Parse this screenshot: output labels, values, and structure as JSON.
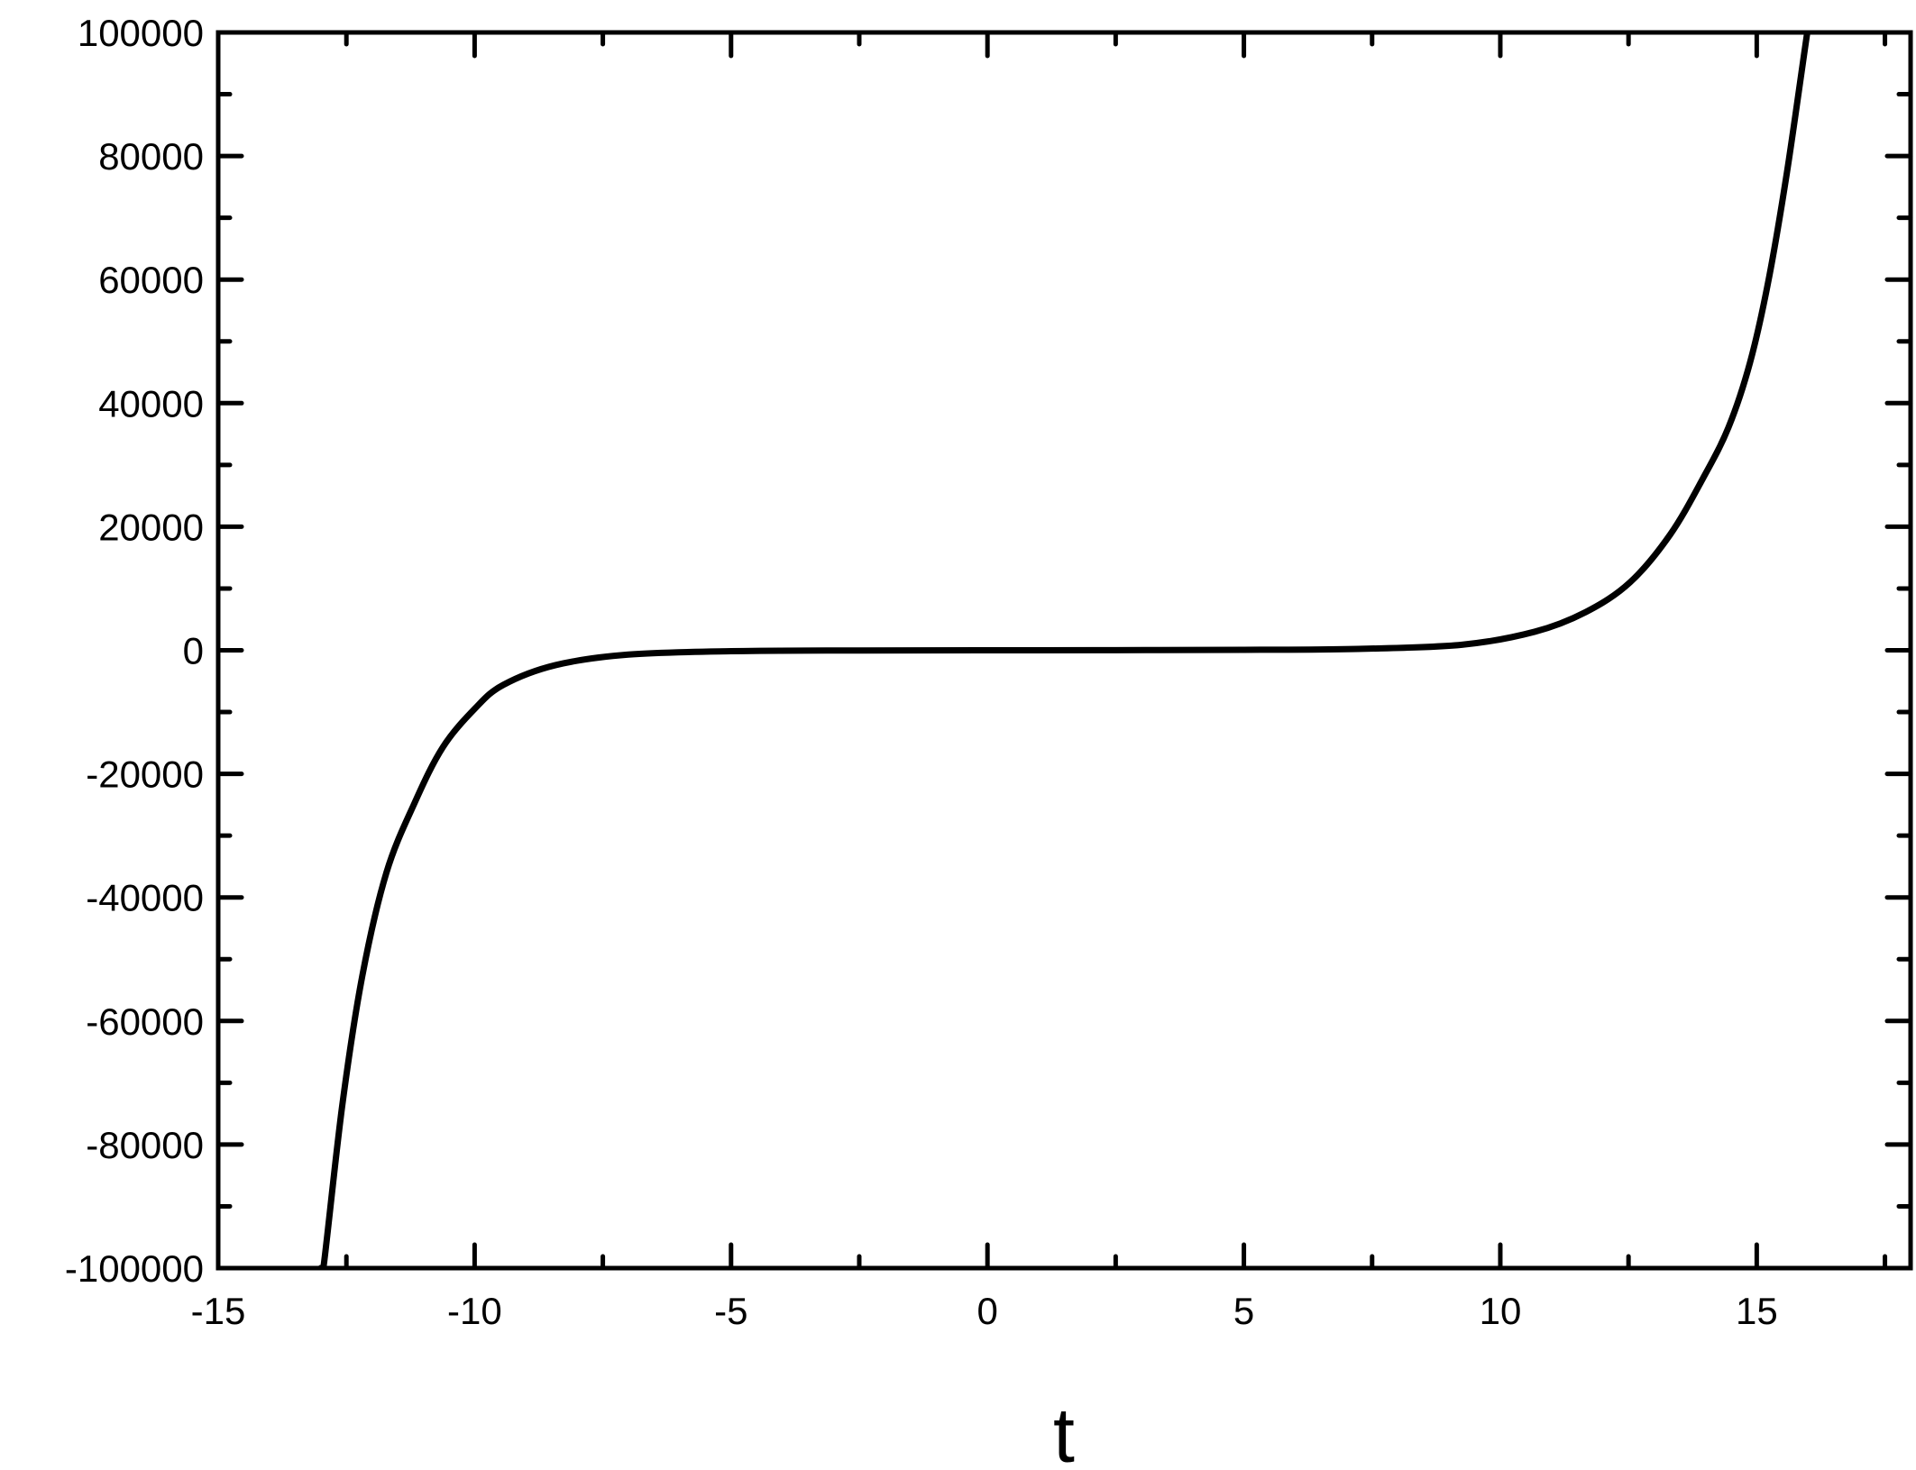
{
  "chart_data": {
    "type": "line",
    "title": "",
    "xlabel": "t",
    "ylabel": "",
    "xlim": [
      -15,
      18
    ],
    "ylim": [
      -100000,
      100000
    ],
    "x_ticks": [
      -15,
      -10,
      -5,
      0,
      5,
      10,
      15
    ],
    "x_tick_labels": [
      "-15",
      "-10",
      "-5",
      "0",
      "5",
      "10",
      "15"
    ],
    "y_ticks": [
      -100000,
      -80000,
      -60000,
      -40000,
      -20000,
      0,
      20000,
      40000,
      60000,
      80000,
      100000
    ],
    "y_tick_labels": [
      "-100000",
      "-80000",
      "-60000",
      "-40000",
      "-20000",
      "0",
      "20000",
      "40000",
      "60000",
      "80000",
      "100000"
    ],
    "grid": false,
    "line_color": "#000000",
    "series": [
      {
        "x": [
          -13.0,
          -12.94,
          -12.58,
          -12.19,
          -11.72,
          -11.17,
          -10.62,
          -9.99,
          -9.44,
          -8.42,
          -7.0,
          -5.0,
          -2.5,
          0,
          2.5,
          5.0,
          7.1,
          9.25,
          10.67,
          11.67,
          12.53,
          13.31,
          13.95,
          14.45,
          14.87,
          15.23,
          15.59,
          15.98,
          16.0
        ],
        "y": [
          -100000,
          -99400,
          -73600,
          -52700,
          -36000,
          -24700,
          -15700,
          -9400,
          -5600,
          -2400,
          -700,
          -150,
          -30,
          0,
          20,
          80,
          200,
          900,
          3000,
          6200,
          11000,
          18700,
          27800,
          36100,
          46600,
          59900,
          77400,
          99700,
          100000
        ]
      }
    ]
  }
}
